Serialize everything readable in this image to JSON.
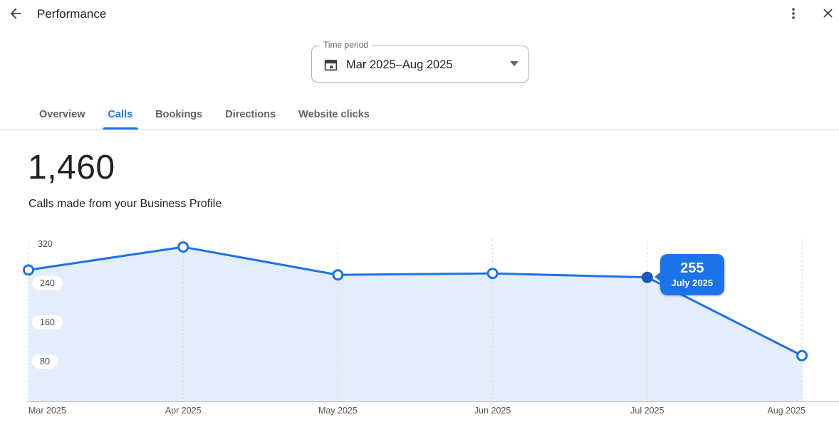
{
  "header": {
    "title": "Performance"
  },
  "time_period": {
    "label": "Time period",
    "value": "Mar 2025–Aug 2025"
  },
  "tabs": [
    {
      "label": "Overview",
      "active": false
    },
    {
      "label": "Calls",
      "active": true
    },
    {
      "label": "Bookings",
      "active": false
    },
    {
      "label": "Directions",
      "active": false
    },
    {
      "label": "Website clicks",
      "active": false
    }
  ],
  "metric": {
    "value": "1,460",
    "description": "Calls made from your Business Profile"
  },
  "chart_data": {
    "type": "area",
    "title": "Calls made from your Business Profile",
    "categories": [
      "Mar 2025",
      "Apr 2025",
      "May 2025",
      "Jun 2025",
      "Jul 2025",
      "Aug 2025"
    ],
    "values": [
      270,
      317,
      260,
      263,
      255,
      95
    ],
    "y_ticks": [
      320,
      240,
      160,
      80
    ],
    "ylim": [
      0,
      342
    ],
    "grid": "vertical-dashed",
    "legend": "none",
    "highlight": {
      "index": 4,
      "value": "255",
      "label": "July 2025"
    },
    "colors": {
      "line": "#1a73e8",
      "area": "#e3edfc",
      "gridline": "#d7dadd",
      "highlight_dot": "#1857c0",
      "tooltip_bg": "#1a73e8"
    }
  },
  "colors": {
    "accent": "#1a73e8",
    "text_primary": "#202124",
    "text_secondary": "#5f6368",
    "divider": "#dadce0"
  }
}
